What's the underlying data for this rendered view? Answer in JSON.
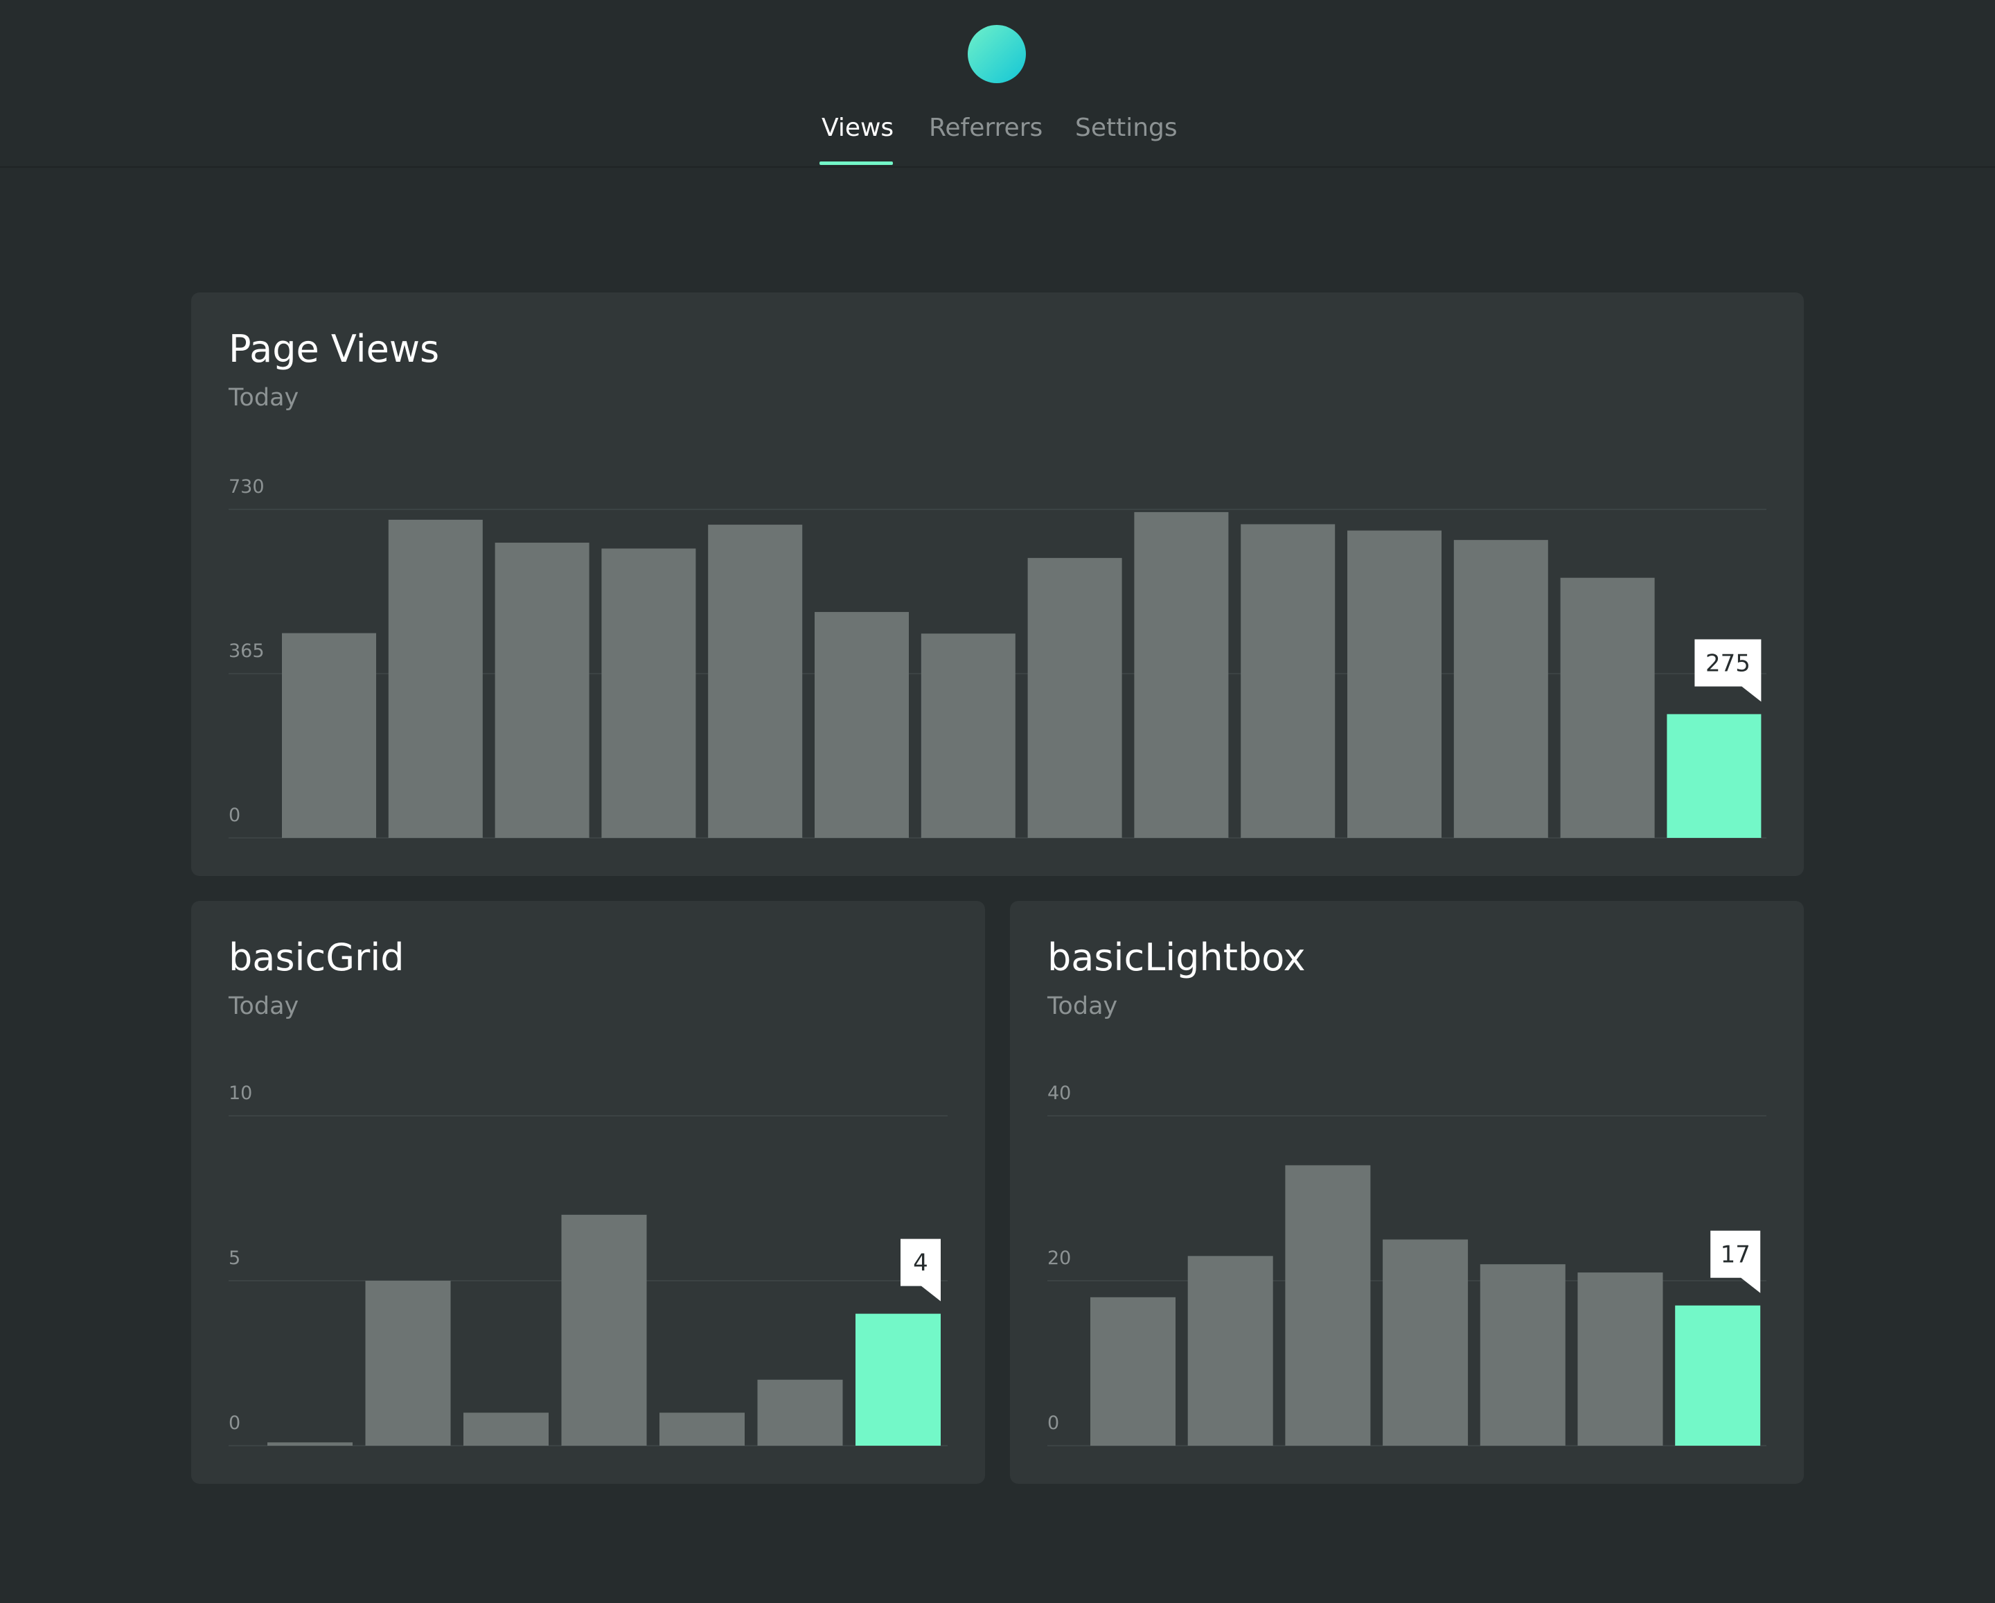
{
  "nav": {
    "tabs": [
      {
        "label": "Views",
        "active": true
      },
      {
        "label": "Referrers",
        "active": false
      },
      {
        "label": "Settings",
        "active": false
      }
    ]
  },
  "colors": {
    "background": "#262c2d",
    "card": "#313738",
    "bar": "#6d7473",
    "highlight": "#73f8c8",
    "grid": "#3c4344"
  },
  "cards": [
    {
      "title": "Page Views",
      "subtitle": "Today"
    },
    {
      "title": "basicGrid",
      "subtitle": "Today"
    },
    {
      "title": "basicLightbox",
      "subtitle": "Today"
    }
  ],
  "chart_data": [
    {
      "type": "bar",
      "title": "Page Views",
      "subtitle": "Today",
      "yticks": [
        0,
        365,
        730
      ],
      "ylim": [
        0,
        730
      ],
      "values": [
        455,
        707,
        656,
        643,
        696,
        502,
        454,
        622,
        724,
        697,
        683,
        662,
        578,
        275
      ],
      "highlight_index": 13,
      "highlight_label": "275",
      "grid": true
    },
    {
      "type": "bar",
      "title": "basicGrid",
      "subtitle": "Today",
      "yticks": [
        0,
        5,
        10
      ],
      "ylim": [
        0,
        10
      ],
      "values": [
        0.1,
        5,
        1,
        7,
        1,
        2,
        4
      ],
      "highlight_index": 6,
      "highlight_label": "4",
      "grid": true
    },
    {
      "type": "bar",
      "title": "basicLightbox",
      "subtitle": "Today",
      "yticks": [
        0,
        20,
        40
      ],
      "ylim": [
        0,
        40
      ],
      "values": [
        18,
        23,
        34,
        25,
        22,
        21,
        17
      ],
      "highlight_index": 6,
      "highlight_label": "17",
      "grid": true
    }
  ]
}
